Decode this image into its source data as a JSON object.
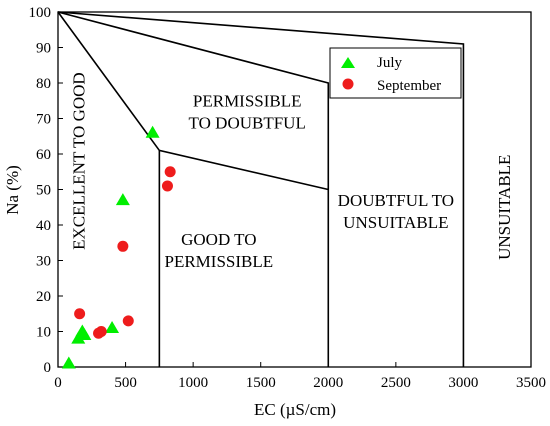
{
  "chart_data": {
    "type": "scatter",
    "title": "",
    "xlabel": "EC (µS/cm)",
    "ylabel": "Na (%)",
    "xlim": [
      0,
      3500
    ],
    "ylim": [
      0,
      100
    ],
    "xticks": [
      0,
      500,
      1000,
      1500,
      2000,
      2500,
      3000,
      3500
    ],
    "yticks": [
      0,
      10,
      20,
      30,
      40,
      50,
      60,
      70,
      80,
      90,
      100
    ],
    "grid": false,
    "legend_position": "top-right",
    "series": [
      {
        "name": "July",
        "marker": "triangle",
        "color": "#00ee00",
        "points": [
          {
            "x": 80,
            "y": 1
          },
          {
            "x": 150,
            "y": 8
          },
          {
            "x": 180,
            "y": 10
          },
          {
            "x": 195,
            "y": 9
          },
          {
            "x": 400,
            "y": 11
          },
          {
            "x": 480,
            "y": 47
          },
          {
            "x": 700,
            "y": 66
          }
        ]
      },
      {
        "name": "September",
        "marker": "circle",
        "color": "#ee1c1c",
        "points": [
          {
            "x": 160,
            "y": 15
          },
          {
            "x": 300,
            "y": 9.5
          },
          {
            "x": 320,
            "y": 10
          },
          {
            "x": 480,
            "y": 34
          },
          {
            "x": 520,
            "y": 13
          },
          {
            "x": 810,
            "y": 51
          },
          {
            "x": 830,
            "y": 55
          }
        ]
      }
    ],
    "boundaries": [
      {
        "name": "line-to-3000-91",
        "points": [
          [
            0,
            100
          ],
          [
            3000,
            91
          ],
          [
            3000,
            0
          ]
        ]
      },
      {
        "name": "line-to-2000-80",
        "points": [
          [
            0,
            100
          ],
          [
            2000,
            80
          ],
          [
            2000,
            0
          ]
        ]
      },
      {
        "name": "line-to-2000-50",
        "points": [
          [
            0,
            100
          ],
          [
            750,
            61
          ],
          [
            2000,
            50
          ]
        ]
      },
      {
        "name": "line-750-vertical",
        "points": [
          [
            750,
            61
          ],
          [
            750,
            0
          ]
        ]
      }
    ],
    "regions": [
      {
        "name": "excellent-to-good",
        "lines": [
          "EXCELLENT TO GOOD"
        ],
        "x": 150,
        "y": 58,
        "rotate": -90
      },
      {
        "name": "permissible-to-doubtful",
        "lines": [
          "PERMISSIBLE",
          "TO DOUBTFUL"
        ],
        "x": 1400,
        "y": 72,
        "rotate": 0
      },
      {
        "name": "good-to-permissible",
        "lines": [
          "GOOD TO",
          "PERMISSIBLE"
        ],
        "x": 1190,
        "y": 33,
        "rotate": 0
      },
      {
        "name": "doubtful-to-unsuitable",
        "lines": [
          "DOUBTFUL TO",
          "UNSUITABLE"
        ],
        "x": 2500,
        "y": 44,
        "rotate": 0
      },
      {
        "name": "unsuitable",
        "lines": [
          "UNSUITABLE"
        ],
        "x": 3300,
        "y": 45,
        "rotate": -90
      }
    ]
  }
}
